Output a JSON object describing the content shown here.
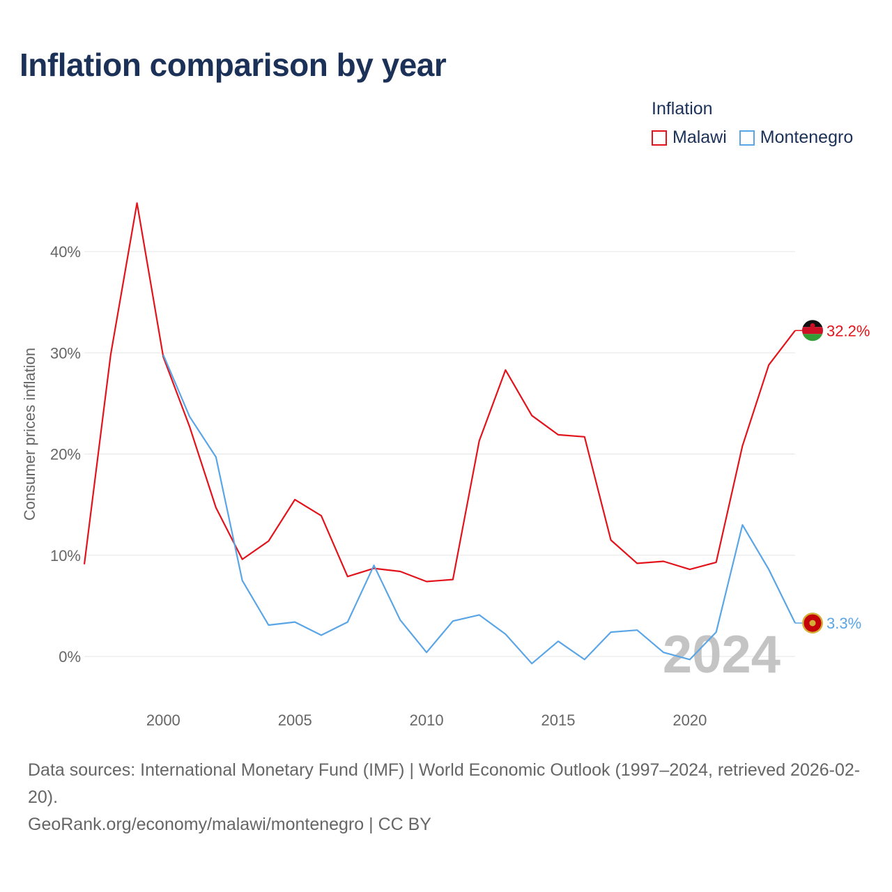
{
  "page": {
    "title": "Inflation comparison by year",
    "watermark_year": "2024"
  },
  "legend": {
    "title": "Inflation",
    "items": [
      {
        "label": "Malawi",
        "color": "#e3131b"
      },
      {
        "label": "Montenegro",
        "color": "#5aa5e6"
      }
    ]
  },
  "footer": {
    "source": "Data sources: International Monetary Fund (IMF) | World Economic Outlook (1997–2024, retrieved 2026-02-20).",
    "credit": "GeoRank.org/economy/malawi/montenegro | CC BY"
  },
  "colors": {
    "title": "#1b3157",
    "grid": "#e6e6e6",
    "axis_text": "#666666",
    "watermark": "#c4c4c4"
  },
  "chart_data": {
    "type": "line",
    "title": "Inflation comparison by year",
    "xlabel": "",
    "ylabel": "Consumer prices inflation",
    "xlim": [
      1997,
      2024
    ],
    "ylim": [
      -4.5,
      45
    ],
    "grid": true,
    "legend_position": "top-right",
    "x_ticks": [
      2000,
      2005,
      2010,
      2015,
      2020
    ],
    "y_ticks": [
      0,
      10,
      20,
      30,
      40
    ],
    "y_tick_labels": [
      "0%",
      "10%",
      "20%",
      "30%",
      "40%"
    ],
    "series": [
      {
        "name": "Malawi",
        "color": "#e3131b",
        "end_label": "32.2%",
        "flag": "malawi-flag-icon",
        "x": [
          1997,
          1998,
          1999,
          2000,
          2001,
          2002,
          2003,
          2004,
          2005,
          2006,
          2007,
          2008,
          2009,
          2010,
          2011,
          2012,
          2013,
          2014,
          2015,
          2016,
          2017,
          2018,
          2019,
          2020,
          2021,
          2022,
          2023,
          2024
        ],
        "values": [
          9.1,
          29.8,
          44.8,
          29.6,
          22.7,
          14.7,
          9.6,
          11.4,
          15.5,
          13.9,
          7.9,
          8.7,
          8.4,
          7.4,
          7.6,
          21.3,
          28.3,
          23.8,
          21.9,
          21.7,
          11.5,
          9.2,
          9.4,
          8.6,
          9.3,
          20.8,
          28.8,
          32.2
        ]
      },
      {
        "name": "Montenegro",
        "color": "#5aa5e6",
        "end_label": "3.3%",
        "flag": "montenegro-flag-icon",
        "x": [
          2000,
          2001,
          2002,
          2003,
          2004,
          2005,
          2006,
          2007,
          2008,
          2009,
          2010,
          2011,
          2012,
          2013,
          2014,
          2015,
          2016,
          2017,
          2018,
          2019,
          2020,
          2021,
          2022,
          2023,
          2024
        ],
        "values": [
          29.8,
          23.7,
          19.7,
          7.5,
          3.1,
          3.4,
          2.1,
          3.4,
          9.0,
          3.6,
          0.4,
          3.5,
          4.1,
          2.2,
          -0.7,
          1.5,
          -0.3,
          2.4,
          2.6,
          0.4,
          -0.3,
          2.4,
          13.0,
          8.6,
          3.3
        ]
      }
    ]
  }
}
